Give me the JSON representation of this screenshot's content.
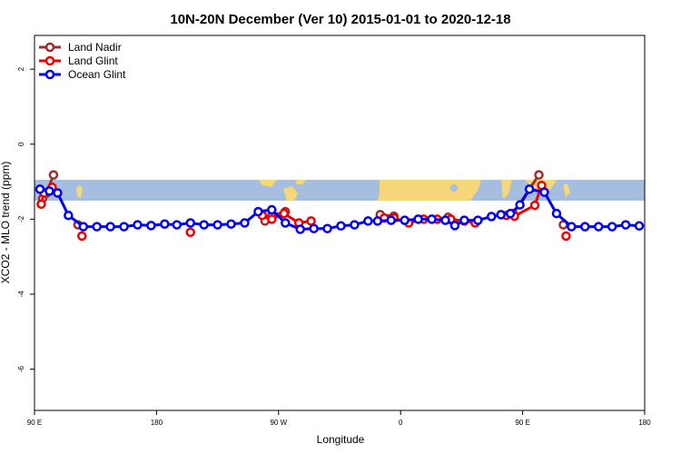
{
  "chart_data": {
    "type": "line",
    "title": "10N-20N December (Ver 10)   2015-01-01 to 2020-12-18",
    "x_label": "Longitude",
    "y_label": "XCO2 - MLO trend (ppm)",
    "xlim": [
      90,
      540
    ],
    "ylim": [
      -7.1,
      2.9
    ],
    "xticks": [
      {
        "value": 90,
        "label": "90 E"
      },
      180,
      {
        "value": 270,
        "label": "90 W"
      },
      {
        "value": 360,
        "label": "0"
      },
      {
        "value": 450,
        "label": "90 E"
      },
      {
        "value": 540,
        "label": "180"
      }
    ],
    "yticks": [
      2,
      0,
      -2,
      -4,
      -6
    ],
    "legend": "top-left",
    "series": [
      {
        "name": "Land Nadir",
        "color": "#a52a2a",
        "x": [
          96,
          99,
          104,
          null,
          122,
          null,
          260,
          265,
          275,
          null,
          345,
          355,
          null,
          395,
          null,
          443,
          462,
          null,
          480
        ],
        "values": [
          -1.45,
          -1.3,
          -0.82,
          null,
          -2.15,
          null,
          -2.05,
          -1.9,
          -1.8,
          null,
          -1.88,
          -1.92,
          null,
          -1.95,
          null,
          -1.85,
          -0.82,
          null,
          -2.15
        ]
      },
      {
        "name": "Land Glint",
        "color": "#ee0000",
        "x": [
          95,
          97,
          103,
          null,
          125,
          null,
          205,
          null,
          258,
          265,
          274,
          285,
          294,
          null,
          348,
          355,
          366,
          377,
          387,
          397,
          407,
          415,
          null,
          438,
          444,
          459,
          464,
          null,
          482
        ],
        "values": [
          -1.6,
          -1.3,
          -1.15,
          null,
          -2.45,
          null,
          -2.35,
          null,
          -1.9,
          -2.0,
          -1.85,
          -2.1,
          -2.05,
          null,
          -1.97,
          -1.97,
          -2.1,
          -2.0,
          -2.0,
          -2.0,
          -2.05,
          -2.1,
          null,
          -1.9,
          -1.92,
          -1.63,
          -1.1,
          null,
          -2.45
        ]
      },
      {
        "name": "Ocean Glint",
        "color": "#0000ee",
        "x": [
          94,
          101,
          107,
          115,
          126,
          136,
          146,
          156,
          166,
          176,
          186,
          195,
          205,
          215,
          225,
          235,
          245,
          255,
          265,
          275,
          286,
          296,
          306,
          316,
          326,
          336,
          343,
          353,
          363,
          373,
          383,
          393,
          400,
          407,
          417,
          427,
          434,
          441,
          448,
          455,
          466,
          475,
          486,
          496,
          506,
          516,
          526,
          536
        ],
        "values": [
          -1.2,
          -1.25,
          -1.3,
          -1.9,
          -2.2,
          -2.2,
          -2.2,
          -2.2,
          -2.15,
          -2.17,
          -2.13,
          -2.15,
          -2.1,
          -2.15,
          -2.15,
          -2.13,
          -2.1,
          -1.8,
          -1.75,
          -2.1,
          -2.27,
          -2.25,
          -2.25,
          -2.18,
          -2.15,
          -2.05,
          -2.05,
          -2.03,
          -2.03,
          -2.0,
          -2.0,
          -2.03,
          -2.17,
          -2.03,
          -2.03,
          -1.93,
          -1.88,
          -1.85,
          -1.62,
          -1.2,
          -1.28,
          -1.85,
          -2.2,
          -2.2,
          -2.2,
          -2.2,
          -2.15,
          -2.18
        ]
      }
    ]
  }
}
